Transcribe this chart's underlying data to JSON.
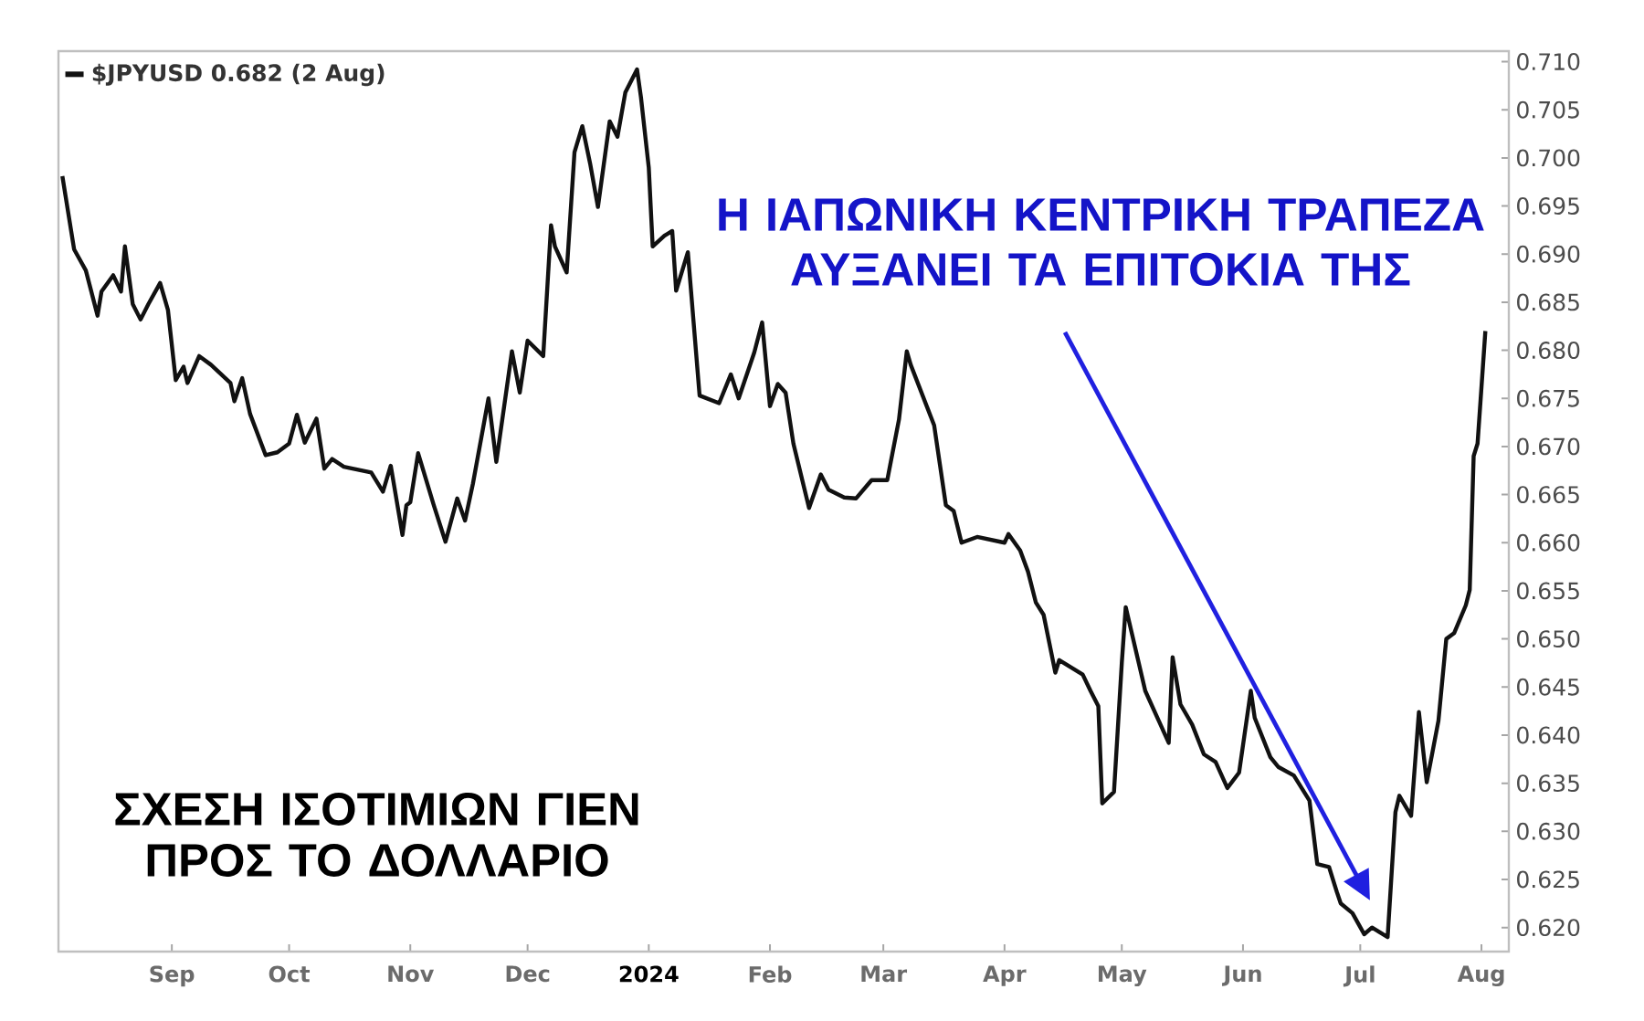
{
  "chart_data": {
    "type": "line",
    "title": "ΣΧΕΣΗ ΙΣΟΤΙΜΙΩΝ ΓΙΕΝ ΠΡΟΣ ΤΟ ΔΟΛΛΑΡΙΟ",
    "annotations": [
      "Η ΙΑΠΩΝΙΚΗ ΚΕΝΤΡΙΚΗ ΤΡΑΠΕΖΑ ΑΥΞΑΝΕΙ ΤΑ ΕΠΙΤΟΚΙΑ ΤΗΣ"
    ],
    "x": [
      "2023-08-04",
      "2023-08-07",
      "2023-08-10",
      "2023-08-13",
      "2023-08-14",
      "2023-08-17",
      "2023-08-19",
      "2023-08-20",
      "2023-08-22",
      "2023-08-24",
      "2023-08-26",
      "2023-08-29",
      "2023-08-31",
      "2023-09-02",
      "2023-09-04",
      "2023-09-05",
      "2023-09-08",
      "2023-09-11",
      "2023-09-16",
      "2023-09-17",
      "2023-09-19",
      "2023-09-21",
      "2023-09-25",
      "2023-09-28",
      "2023-10-01",
      "2023-10-03",
      "2023-10-05",
      "2023-10-08",
      "2023-10-10",
      "2023-10-12",
      "2023-10-15",
      "2023-10-22",
      "2023-10-25",
      "2023-10-27",
      "2023-10-30",
      "2023-10-31",
      "2023-11-01",
      "2023-11-03",
      "2023-11-07",
      "2023-11-10",
      "2023-11-13",
      "2023-11-15",
      "2023-11-17",
      "2023-11-21",
      "2023-11-23",
      "2023-11-27",
      "2023-11-29",
      "2023-12-01",
      "2023-12-05",
      "2023-12-07",
      "2023-12-08",
      "2023-12-11",
      "2023-12-13",
      "2023-12-15",
      "2023-12-17",
      "2023-12-19",
      "2023-12-22",
      "2023-12-24",
      "2023-12-26",
      "2023-12-29",
      "2023-12-30",
      "2024-01-01",
      "2024-01-02",
      "2024-01-05",
      "2024-01-07",
      "2024-01-08",
      "2024-01-11",
      "2024-01-14",
      "2024-01-19",
      "2024-01-22",
      "2024-01-24",
      "2024-01-28",
      "2024-01-30",
      "2024-02-01",
      "2024-02-03",
      "2024-02-05",
      "2024-02-07",
      "2024-02-11",
      "2024-02-14",
      "2024-02-16",
      "2024-02-20",
      "2024-02-23",
      "2024-02-27",
      "2024-03-02",
      "2024-03-05",
      "2024-03-07",
      "2024-03-08",
      "2024-03-14",
      "2024-03-17",
      "2024-03-19",
      "2024-03-21",
      "2024-03-25",
      "2024-04-01",
      "2024-04-02",
      "2024-04-05",
      "2024-04-07",
      "2024-04-09",
      "2024-04-11",
      "2024-04-14",
      "2024-04-15",
      "2024-04-21",
      "2024-04-23",
      "2024-04-25",
      "2024-04-26",
      "2024-04-29",
      "2024-05-01",
      "2024-05-02",
      "2024-05-07",
      "2024-05-08",
      "2024-05-13",
      "2024-05-14",
      "2024-05-16",
      "2024-05-19",
      "2024-05-22",
      "2024-05-25",
      "2024-05-28",
      "2024-05-31",
      "2024-06-03",
      "2024-06-04",
      "2024-06-08",
      "2024-06-10",
      "2024-06-14",
      "2024-06-18",
      "2024-06-20",
      "2024-06-23",
      "2024-06-25",
      "2024-06-26",
      "2024-06-29",
      "2024-07-02",
      "2024-07-04",
      "2024-07-08",
      "2024-07-10",
      "2024-07-11",
      "2024-07-14",
      "2024-07-16",
      "2024-07-18",
      "2024-07-21",
      "2024-07-23",
      "2024-07-25",
      "2024-07-28",
      "2024-07-29",
      "2024-07-30",
      "2024-07-31",
      "2024-08-02"
    ],
    "series": [
      {
        "name": "$JPYUSD 0.682 (2 Aug)",
        "color": "#111111",
        "values": [
          0.6981,
          0.6905,
          0.6883,
          0.6836,
          0.6861,
          0.6878,
          0.6861,
          0.6908,
          0.6848,
          0.6832,
          0.6848,
          0.687,
          0.6842,
          0.6769,
          0.6783,
          0.6766,
          0.6794,
          0.6785,
          0.6766,
          0.6747,
          0.6771,
          0.6734,
          0.6691,
          0.6694,
          0.6703,
          0.6733,
          0.6704,
          0.6729,
          0.6677,
          0.6687,
          0.6679,
          0.6673,
          0.6653,
          0.668,
          0.6608,
          0.6639,
          0.6642,
          0.6693,
          0.6639,
          0.6601,
          0.6646,
          0.6623,
          0.6661,
          0.675,
          0.6684,
          0.6799,
          0.6756,
          0.681,
          0.6794,
          0.693,
          0.6908,
          0.6881,
          0.7006,
          0.7033,
          0.6994,
          0.6949,
          0.7038,
          0.7022,
          0.7068,
          0.7092,
          0.7063,
          0.699,
          0.6908,
          0.6919,
          0.6924,
          0.6862,
          0.6902,
          0.6753,
          0.6745,
          0.6775,
          0.675,
          0.6798,
          0.6829,
          0.6742,
          0.6765,
          0.6756,
          0.6703,
          0.6636,
          0.6671,
          0.6655,
          0.6647,
          0.6646,
          0.6665,
          0.6665,
          0.6728,
          0.6799,
          0.6785,
          0.6722,
          0.6639,
          0.6633,
          0.66,
          0.6606,
          0.66,
          0.6609,
          0.6592,
          0.657,
          0.6538,
          0.6525,
          0.6465,
          0.6478,
          0.6463,
          0.6446,
          0.643,
          0.6329,
          0.6341,
          0.6475,
          0.6533,
          0.6446,
          0.6437,
          0.6392,
          0.6481,
          0.6432,
          0.6411,
          0.638,
          0.6372,
          0.6345,
          0.6361,
          0.6446,
          0.6418,
          0.6377,
          0.6367,
          0.6358,
          0.6332,
          0.6266,
          0.6263,
          0.6237,
          0.6225,
          0.6215,
          0.6193,
          0.62,
          0.619,
          0.632,
          0.6337,
          0.6316,
          0.6424,
          0.6351,
          0.6415,
          0.65,
          0.6506,
          0.6535,
          0.6551,
          0.669,
          0.6703,
          0.682
        ]
      }
    ],
    "xlim": [
      "2023-08-03",
      "2024-08-08"
    ],
    "ylim": [
      0.6175,
      0.7111
    ],
    "xticks": [
      {
        "value": "2023-09-01",
        "label": "Sep"
      },
      {
        "value": "2023-10-01",
        "label": "Oct"
      },
      {
        "value": "2023-11-01",
        "label": "Nov"
      },
      {
        "value": "2023-12-01",
        "label": "Dec"
      },
      {
        "value": "2024-01-01",
        "label": "2024"
      },
      {
        "value": "2024-02-01",
        "label": "Feb"
      },
      {
        "value": "2024-03-01",
        "label": "Mar"
      },
      {
        "value": "2024-04-01",
        "label": "Apr"
      },
      {
        "value": "2024-05-01",
        "label": "May"
      },
      {
        "value": "2024-06-01",
        "label": "Jun"
      },
      {
        "value": "2024-07-01",
        "label": "Jul"
      },
      {
        "value": "2024-08-01",
        "label": "Aug"
      }
    ],
    "yticks": [
      {
        "value": 0.62,
        "label": "0.620"
      },
      0.625,
      {
        "value": 0.63,
        "label": "0.630"
      },
      0.635,
      {
        "value": 0.64,
        "label": "0.640"
      },
      0.645,
      {
        "value": 0.65,
        "label": "0.650"
      },
      0.655,
      {
        "value": 0.66,
        "label": "0.660"
      },
      0.665,
      {
        "value": 0.67,
        "label": "0.670"
      },
      0.675,
      {
        "value": 0.68,
        "label": "0.680"
      },
      0.685,
      {
        "value": 0.69,
        "label": "0.690"
      },
      0.695,
      {
        "value": 0.7,
        "label": "0.700"
      },
      0.705,
      {
        "value": 0.71,
        "label": "0.710"
      }
    ],
    "legend": "top left"
  }
}
